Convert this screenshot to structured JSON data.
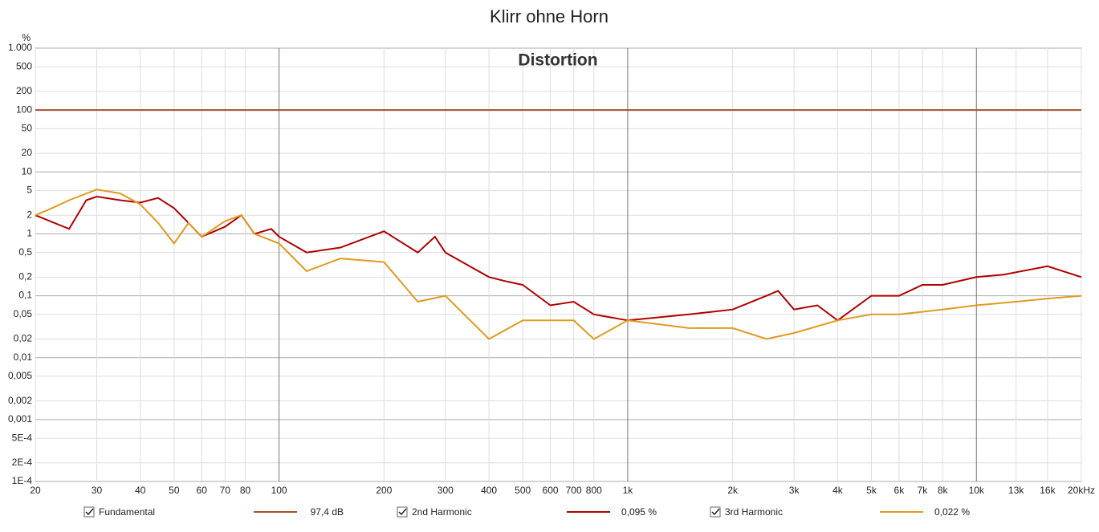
{
  "chart_data": {
    "type": "line",
    "title": "Klirr ohne Horn",
    "subtitle": "Distortion",
    "y_unit": "%",
    "log_x": true,
    "log_y": true,
    "grid": true,
    "xlim": [
      20,
      20000
    ],
    "ylim": [
      0.0001,
      1000
    ],
    "xticks": [
      20,
      30,
      40,
      50,
      60,
      70,
      80,
      100,
      200,
      300,
      400,
      500,
      600,
      700,
      800,
      {
        "value": 1000,
        "label": "1k"
      },
      {
        "value": 2000,
        "label": "2k"
      },
      {
        "value": 3000,
        "label": "3k"
      },
      {
        "value": 4000,
        "label": "4k"
      },
      {
        "value": 5000,
        "label": "5k"
      },
      {
        "value": 6000,
        "label": "6k"
      },
      {
        "value": 7000,
        "label": "7k"
      },
      {
        "value": 8000,
        "label": "8k"
      },
      {
        "value": 10000,
        "label": "10k"
      },
      {
        "value": 13000,
        "label": "13k"
      },
      {
        "value": 16000,
        "label": "16k"
      },
      {
        "value": 20000,
        "label": "20kHz"
      }
    ],
    "yticks": [
      {
        "value": 1000,
        "label": "1.000"
      },
      500,
      200,
      100,
      50,
      20,
      10,
      5,
      2,
      1,
      {
        "value": 0.5,
        "label": "0,5"
      },
      {
        "value": 0.2,
        "label": "0,2"
      },
      {
        "value": 0.1,
        "label": "0,1"
      },
      {
        "value": 0.05,
        "label": "0,05"
      },
      {
        "value": 0.02,
        "label": "0,02"
      },
      {
        "value": 0.01,
        "label": "0,01"
      },
      {
        "value": 0.005,
        "label": "0,005"
      },
      {
        "value": 0.002,
        "label": "0,002"
      },
      {
        "value": 0.001,
        "label": "0,001"
      },
      {
        "value": 0.0005,
        "label": "5E-4"
      },
      {
        "value": 0.0002,
        "label": "2E-4"
      },
      {
        "value": 0.0001,
        "label": "1E-4"
      }
    ],
    "series": [
      {
        "name": "Fundamental",
        "color": "#a0522d",
        "readout": "97,4 dB",
        "x": [
          20,
          20000
        ],
        "values": [
          100,
          100
        ]
      },
      {
        "name": "2nd Harmonic",
        "color": "#b00000",
        "readout": "0,095 %",
        "x": [
          20,
          25,
          28,
          30,
          35,
          40,
          45,
          50,
          55,
          60,
          70,
          78,
          85,
          95,
          100,
          120,
          150,
          200,
          250,
          280,
          300,
          400,
          450,
          500,
          600,
          700,
          800,
          1000,
          1500,
          2000,
          2500,
          2700,
          3000,
          3500,
          4000,
          5000,
          6000,
          7000,
          8000,
          10000,
          12000,
          16000,
          20000
        ],
        "values": [
          2,
          1.2,
          3.5,
          4,
          3.5,
          3.2,
          3.8,
          2.6,
          1.5,
          0.9,
          1.3,
          2,
          1,
          1.2,
          0.9,
          0.5,
          0.6,
          1.1,
          0.5,
          0.9,
          0.5,
          0.2,
          0.17,
          0.15,
          0.07,
          0.08,
          0.05,
          0.04,
          0.05,
          0.06,
          0.1,
          0.12,
          0.06,
          0.07,
          0.04,
          0.1,
          0.1,
          0.15,
          0.15,
          0.2,
          0.22,
          0.3,
          0.2
        ]
      },
      {
        "name": "3rd Harmonic",
        "color": "#e09a20",
        "readout": "0,022 %",
        "x": [
          20,
          22,
          25,
          30,
          35,
          40,
          45,
          50,
          55,
          60,
          70,
          78,
          85,
          100,
          120,
          150,
          200,
          250,
          300,
          400,
          500,
          700,
          800,
          1000,
          1500,
          2000,
          2500,
          3000,
          4000,
          5000,
          6000,
          8000,
          10000,
          13000,
          16000,
          20000
        ],
        "values": [
          2,
          2.5,
          3.5,
          5.2,
          4.5,
          3,
          1.5,
          0.7,
          1.5,
          0.9,
          1.6,
          2,
          1,
          0.7,
          0.25,
          0.4,
          0.35,
          0.08,
          0.1,
          0.02,
          0.04,
          0.04,
          0.02,
          0.04,
          0.03,
          0.03,
          0.02,
          0.025,
          0.04,
          0.05,
          0.05,
          0.06,
          0.07,
          0.08,
          0.09,
          0.1
        ]
      }
    ]
  }
}
